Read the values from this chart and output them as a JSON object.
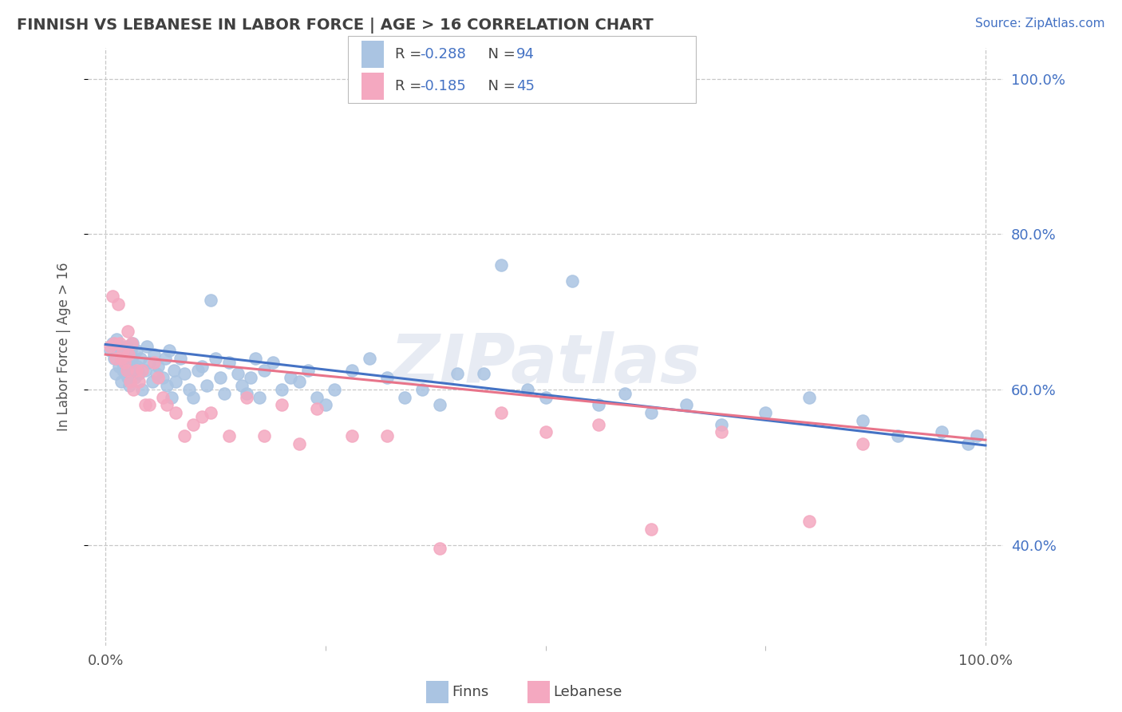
{
  "title": "FINNISH VS LEBANESE IN LABOR FORCE | AGE > 16 CORRELATION CHART",
  "source": "Source: ZipAtlas.com",
  "ylabel": "In Labor Force | Age > 16",
  "xlim": [
    -0.02,
    1.02
  ],
  "ylim": [
    0.27,
    1.04
  ],
  "ytick_labels": [
    "40.0%",
    "60.0%",
    "80.0%",
    "100.0%"
  ],
  "ytick_vals": [
    0.4,
    0.6,
    0.8,
    1.0
  ],
  "xtick_labels": [
    "0.0%",
    "100.0%"
  ],
  "xtick_vals": [
    0.0,
    1.0
  ],
  "finn_color": "#aac4e2",
  "leb_color": "#f4a8c0",
  "finn_line_color": "#4472c4",
  "leb_line_color": "#e8748a",
  "R_finn": -0.288,
  "N_finn": 94,
  "R_leb": -0.185,
  "N_leb": 45,
  "legend_label_finn": "Finns",
  "legend_label_leb": "Lebanese",
  "watermark": "ZIPatlas",
  "background_color": "#ffffff",
  "grid_color": "#c8c8c8",
  "title_color": "#404040",
  "finn_line_x": [
    0.0,
    1.0
  ],
  "finn_line_y": [
    0.658,
    0.528
  ],
  "leb_line_x": [
    0.0,
    1.0
  ],
  "leb_line_y": [
    0.645,
    0.535
  ],
  "finn_scatter_x": [
    0.005,
    0.008,
    0.01,
    0.012,
    0.013,
    0.015,
    0.016,
    0.017,
    0.018,
    0.019,
    0.02,
    0.021,
    0.022,
    0.023,
    0.024,
    0.025,
    0.026,
    0.027,
    0.028,
    0.029,
    0.03,
    0.031,
    0.032,
    0.033,
    0.035,
    0.036,
    0.038,
    0.04,
    0.042,
    0.045,
    0.047,
    0.05,
    0.053,
    0.055,
    0.058,
    0.06,
    0.065,
    0.068,
    0.07,
    0.072,
    0.075,
    0.078,
    0.08,
    0.085,
    0.09,
    0.095,
    0.1,
    0.105,
    0.11,
    0.115,
    0.12,
    0.125,
    0.13,
    0.135,
    0.14,
    0.15,
    0.155,
    0.16,
    0.165,
    0.17,
    0.175,
    0.18,
    0.19,
    0.2,
    0.21,
    0.22,
    0.23,
    0.24,
    0.25,
    0.26,
    0.28,
    0.3,
    0.32,
    0.34,
    0.36,
    0.38,
    0.4,
    0.43,
    0.45,
    0.48,
    0.5,
    0.53,
    0.56,
    0.59,
    0.62,
    0.66,
    0.7,
    0.75,
    0.8,
    0.86,
    0.9,
    0.95,
    0.98,
    0.99
  ],
  "finn_scatter_y": [
    0.65,
    0.66,
    0.64,
    0.62,
    0.665,
    0.63,
    0.655,
    0.645,
    0.61,
    0.635,
    0.625,
    0.65,
    0.64,
    0.62,
    0.655,
    0.615,
    0.645,
    0.605,
    0.635,
    0.65,
    0.64,
    0.66,
    0.625,
    0.615,
    0.65,
    0.63,
    0.62,
    0.64,
    0.6,
    0.625,
    0.655,
    0.635,
    0.61,
    0.645,
    0.62,
    0.63,
    0.615,
    0.64,
    0.605,
    0.65,
    0.59,
    0.625,
    0.61,
    0.64,
    0.62,
    0.6,
    0.59,
    0.625,
    0.63,
    0.605,
    0.715,
    0.64,
    0.615,
    0.595,
    0.635,
    0.62,
    0.605,
    0.595,
    0.615,
    0.64,
    0.59,
    0.625,
    0.635,
    0.6,
    0.615,
    0.61,
    0.625,
    0.59,
    0.58,
    0.6,
    0.625,
    0.64,
    0.615,
    0.59,
    0.6,
    0.58,
    0.62,
    0.62,
    0.76,
    0.6,
    0.59,
    0.74,
    0.58,
    0.595,
    0.57,
    0.58,
    0.555,
    0.57,
    0.59,
    0.56,
    0.54,
    0.545,
    0.53,
    0.54
  ],
  "leb_scatter_x": [
    0.005,
    0.008,
    0.01,
    0.012,
    0.014,
    0.016,
    0.018,
    0.02,
    0.022,
    0.024,
    0.025,
    0.026,
    0.028,
    0.03,
    0.032,
    0.035,
    0.038,
    0.042,
    0.045,
    0.05,
    0.055,
    0.06,
    0.065,
    0.07,
    0.08,
    0.09,
    0.1,
    0.11,
    0.12,
    0.14,
    0.16,
    0.18,
    0.2,
    0.22,
    0.24,
    0.28,
    0.32,
    0.38,
    0.45,
    0.5,
    0.56,
    0.62,
    0.7,
    0.8,
    0.86
  ],
  "leb_scatter_y": [
    0.655,
    0.72,
    0.66,
    0.64,
    0.71,
    0.66,
    0.64,
    0.65,
    0.635,
    0.625,
    0.675,
    0.645,
    0.61,
    0.66,
    0.6,
    0.625,
    0.61,
    0.625,
    0.58,
    0.58,
    0.635,
    0.615,
    0.59,
    0.58,
    0.57,
    0.54,
    0.555,
    0.565,
    0.57,
    0.54,
    0.59,
    0.54,
    0.58,
    0.53,
    0.575,
    0.54,
    0.54,
    0.395,
    0.57,
    0.545,
    0.555,
    0.42,
    0.545,
    0.43,
    0.53
  ]
}
